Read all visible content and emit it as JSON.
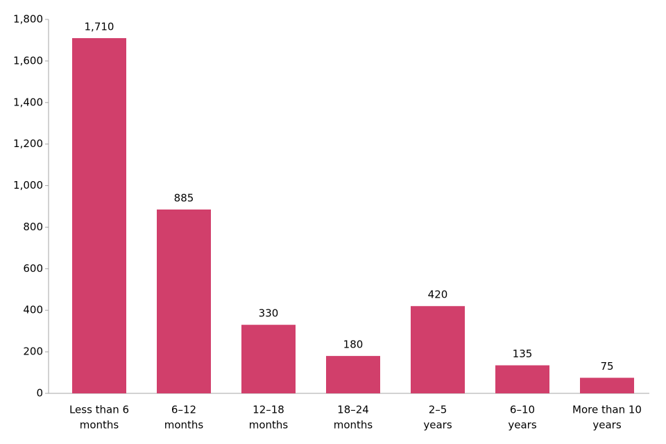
{
  "chart_data": {
    "type": "bar",
    "categories": [
      [
        "Less than 6",
        "months"
      ],
      [
        "6–12",
        "months"
      ],
      [
        "12–18",
        "months"
      ],
      [
        "18–24",
        "months"
      ],
      [
        "2–5",
        "years"
      ],
      [
        "6–10",
        "years"
      ],
      [
        "More than 10",
        "years"
      ]
    ],
    "values": [
      1710,
      885,
      330,
      180,
      420,
      135,
      75
    ],
    "value_labels": [
      "1,710",
      "885",
      "330",
      "180",
      "420",
      "135",
      "75"
    ],
    "color": "#d13f6b",
    "ylim": [
      0,
      1800
    ],
    "yticks": [
      0,
      200,
      400,
      600,
      800,
      {
        "value": 1000,
        "label": "1,000"
      },
      {
        "value": 1200,
        "label": "1,200"
      },
      {
        "value": 1400,
        "label": "1,400"
      },
      {
        "value": 1600,
        "label": "1,600"
      },
      {
        "value": 1800,
        "label": "1,800"
      }
    ],
    "grid": false
  }
}
